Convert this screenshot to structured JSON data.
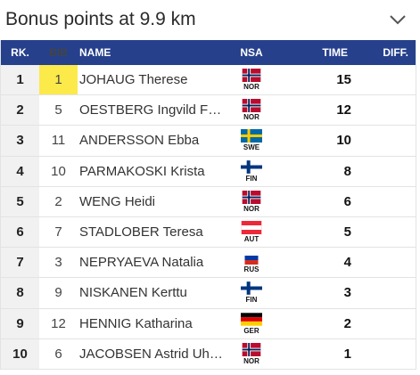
{
  "header": {
    "title": "Bonus points at 9.9 km"
  },
  "columns": {
    "rank": "RK.",
    "bib": "BIB",
    "name": "NAME",
    "nsa": "NSA",
    "time": "TIME",
    "diff": "DIFF."
  },
  "rows": [
    {
      "rank": "1",
      "bib": "1",
      "name": "JOHAUG Therese",
      "nsa": "NOR",
      "time": "15",
      "diff": ""
    },
    {
      "rank": "2",
      "bib": "5",
      "name": "OESTBERG Ingvild F…",
      "nsa": "NOR",
      "time": "12",
      "diff": ""
    },
    {
      "rank": "3",
      "bib": "11",
      "name": "ANDERSSON Ebba",
      "nsa": "SWE",
      "time": "10",
      "diff": ""
    },
    {
      "rank": "4",
      "bib": "10",
      "name": "PARMAKOSKI Krista",
      "nsa": "FIN",
      "time": "8",
      "diff": ""
    },
    {
      "rank": "5",
      "bib": "2",
      "name": "WENG Heidi",
      "nsa": "NOR",
      "time": "6",
      "diff": ""
    },
    {
      "rank": "6",
      "bib": "7",
      "name": "STADLOBER Teresa",
      "nsa": "AUT",
      "time": "5",
      "diff": ""
    },
    {
      "rank": "7",
      "bib": "3",
      "name": "NEPRYAEVA Natalia",
      "nsa": "RUS",
      "time": "4",
      "diff": ""
    },
    {
      "rank": "8",
      "bib": "9",
      "name": "NISKANEN Kerttu",
      "nsa": "FIN",
      "time": "3",
      "diff": ""
    },
    {
      "rank": "9",
      "bib": "12",
      "name": "HENNIG Katharina",
      "nsa": "GER",
      "time": "2",
      "diff": ""
    },
    {
      "rank": "10",
      "bib": "6",
      "name": "JACOBSEN Astrid Uh…",
      "nsa": "NOR",
      "time": "1",
      "diff": ""
    }
  ],
  "icons": {
    "dropdown": "chevron-down-icon"
  },
  "colors": {
    "header_bg": "#26408c",
    "bib_highlight": "#fce94a"
  }
}
